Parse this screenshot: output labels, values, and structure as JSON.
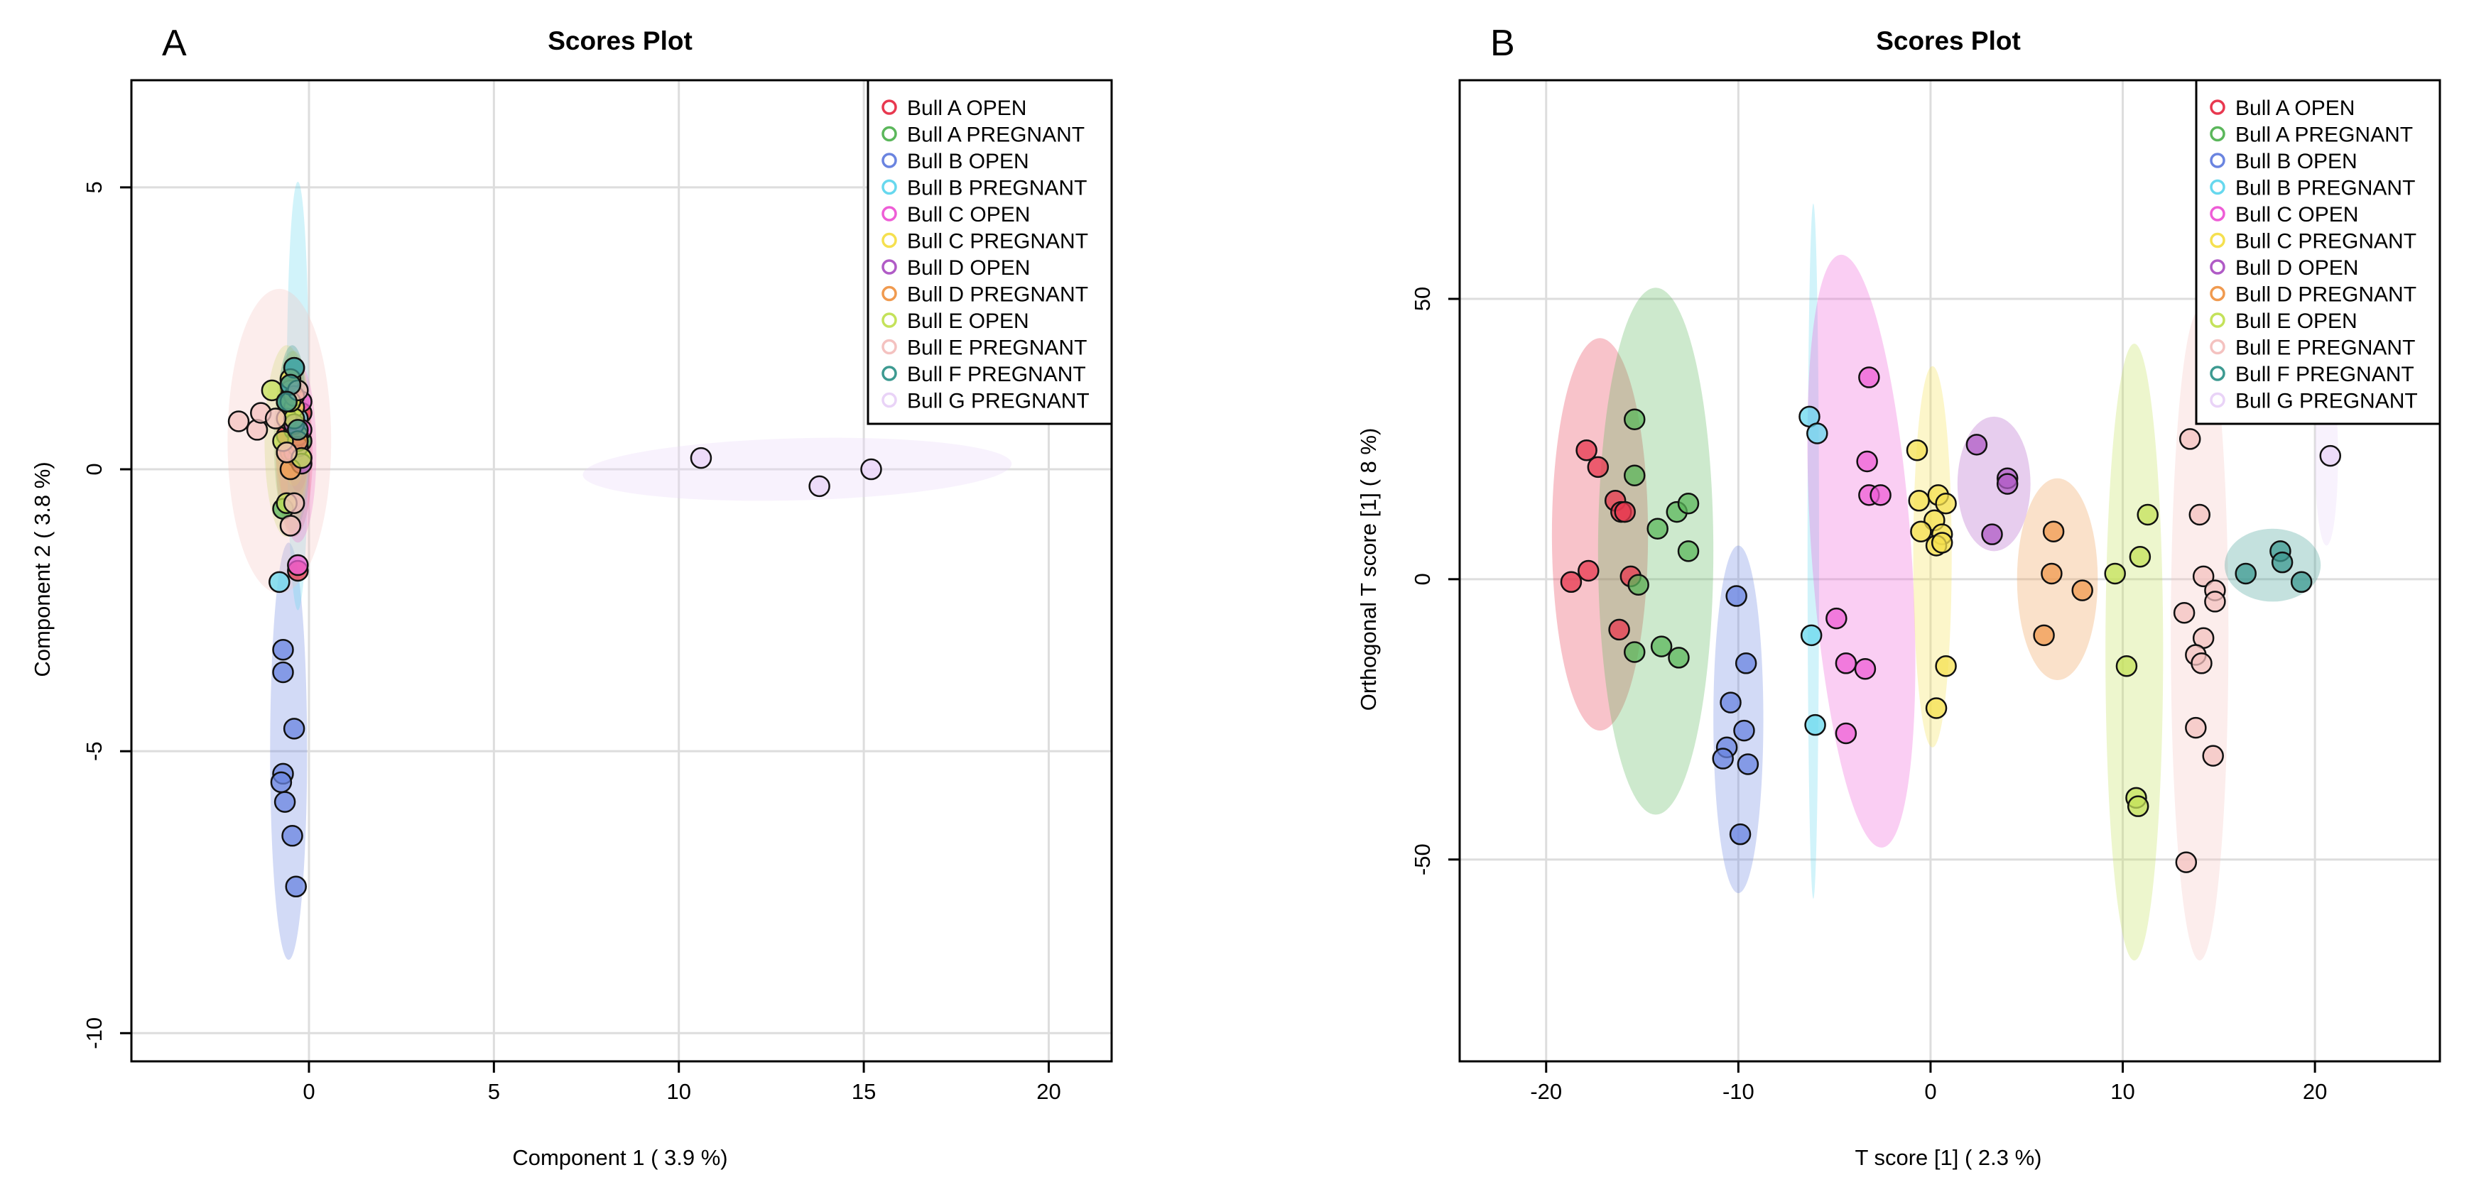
{
  "chart_data": [
    {
      "panel_label": "A",
      "type": "scatter",
      "title": "Scores Plot",
      "xlabel": "Component 1 ( 3.9 %)",
      "ylabel": "Component 2 ( 3.8 %)",
      "xlim": [
        -4.8,
        21.7
      ],
      "ylim": [
        -10.5,
        6.9
      ],
      "xticks": [
        0,
        5,
        10,
        15,
        20
      ],
      "xtick_labels": [
        "0",
        "5",
        "10",
        "15",
        "20"
      ],
      "yticks": [
        -10,
        -5,
        0,
        5
      ],
      "ytick_labels": [
        "-10",
        "-5",
        "0",
        "5"
      ],
      "grid": true,
      "legend_position": "top-right",
      "series": [
        {
          "name": "Bull A OPEN",
          "color": "#E8384F",
          "points": [
            [
              -0.4,
              0.8
            ],
            [
              -0.3,
              0.4
            ],
            [
              -0.6,
              0.6
            ],
            [
              -0.3,
              -1.8
            ],
            [
              -0.2,
              1.0
            ],
            [
              -0.5,
              0.3
            ]
          ],
          "ellipse": {
            "cx": -0.4,
            "cy": 0.3,
            "rx": 0.5,
            "ry": 1.5,
            "angle": 0
          }
        },
        {
          "name": "Bull A PREGNANT",
          "color": "#5BB75B",
          "points": [
            [
              -0.6,
              1.2
            ],
            [
              -0.4,
              0.7
            ],
            [
              -0.3,
              0.2
            ],
            [
              -0.7,
              -0.7
            ],
            [
              -0.5,
              1.5
            ],
            [
              -0.2,
              0.5
            ]
          ],
          "ellipse": {
            "cx": -0.45,
            "cy": 0.5,
            "rx": 0.5,
            "ry": 1.6,
            "angle": 0
          }
        },
        {
          "name": "Bull B OPEN",
          "color": "#6A84E0",
          "points": [
            [
              -0.7,
              -3.2
            ],
            [
              -0.7,
              -3.6
            ],
            [
              -0.4,
              -4.6
            ],
            [
              -0.7,
              -5.4
            ],
            [
              -0.75,
              -5.55
            ],
            [
              -0.65,
              -5.9
            ],
            [
              -0.45,
              -6.5
            ],
            [
              -0.35,
              -7.4
            ]
          ],
          "ellipse": {
            "cx": -0.55,
            "cy": -5.0,
            "rx": 0.5,
            "ry": 3.7,
            "angle": 0
          }
        },
        {
          "name": "Bull B PREGNANT",
          "color": "#67D8EE",
          "points": [
            [
              -0.8,
              -2.0
            ],
            [
              -0.4,
              1.8
            ],
            [
              -0.5,
              1.4
            ],
            [
              -0.3,
              0.9
            ]
          ],
          "ellipse": {
            "cx": -0.3,
            "cy": 1.3,
            "rx": 0.3,
            "ry": 3.8,
            "angle": 0
          }
        },
        {
          "name": "Bull C OPEN",
          "color": "#EE5DD6",
          "points": [
            [
              -0.2,
              0.7
            ],
            [
              -0.4,
              0.3
            ],
            [
              -0.3,
              -1.7
            ],
            [
              -0.2,
              1.2
            ]
          ],
          "ellipse": {
            "cx": -0.3,
            "cy": 0.3,
            "rx": 0.5,
            "ry": 1.6,
            "angle": 0
          }
        },
        {
          "name": "Bull C PREGNANT",
          "color": "#F5E04F",
          "points": [
            [
              -0.5,
              1.6
            ],
            [
              -0.4,
              1.1
            ],
            [
              -0.3,
              0.6
            ],
            [
              -0.6,
              0.9
            ],
            [
              -0.2,
              0.2
            ]
          ],
          "ellipse": {
            "cx": -0.4,
            "cy": 0.9,
            "rx": 0.4,
            "ry": 1.2,
            "angle": 0
          }
        },
        {
          "name": "Bull D OPEN",
          "color": "#B05BC6",
          "points": [
            [
              -0.3,
              0.4
            ],
            [
              -0.4,
              0.8
            ],
            [
              -0.2,
              0.1
            ]
          ],
          "ellipse": {
            "cx": -0.3,
            "cy": 0.4,
            "rx": 0.3,
            "ry": 0.8,
            "angle": 0
          }
        },
        {
          "name": "Bull D PREGNANT",
          "color": "#F09A4F",
          "points": [
            [
              -0.5,
              0.0
            ],
            [
              -0.3,
              0.5
            ],
            [
              -0.6,
              0.3
            ],
            [
              -0.4,
              1.3
            ]
          ],
          "ellipse": {
            "cx": -0.45,
            "cy": 0.5,
            "rx": 0.45,
            "ry": 1.2,
            "angle": 0
          }
        },
        {
          "name": "Bull E OPEN",
          "color": "#C4E25A",
          "points": [
            [
              -1.0,
              1.4
            ],
            [
              -0.6,
              -0.6
            ],
            [
              -0.4,
              0.9
            ],
            [
              -0.7,
              0.5
            ],
            [
              -0.2,
              0.2
            ],
            [
              -0.5,
              1.2
            ]
          ],
          "ellipse": {
            "cx": -0.6,
            "cy": 0.5,
            "rx": 0.6,
            "ry": 1.7,
            "angle": 0
          }
        },
        {
          "name": "Bull E PREGNANT",
          "color": "#F4C2C0",
          "points": [
            [
              -1.9,
              0.85
            ],
            [
              -1.4,
              0.7
            ],
            [
              -1.3,
              1.0
            ],
            [
              -0.9,
              0.9
            ],
            [
              -0.5,
              -1.0
            ],
            [
              -0.4,
              -0.6
            ],
            [
              -0.6,
              0.3
            ],
            [
              -0.3,
              1.4
            ]
          ],
          "ellipse": {
            "cx": -0.8,
            "cy": 0.5,
            "rx": 1.4,
            "ry": 2.7,
            "angle": 0
          }
        },
        {
          "name": "Bull F PREGNANT",
          "color": "#3D9A91",
          "points": [
            [
              -0.4,
              1.8
            ],
            [
              -0.5,
              1.5
            ],
            [
              -0.3,
              0.7
            ],
            [
              -0.6,
              1.2
            ]
          ],
          "ellipse": {
            "cx": -0.45,
            "cy": 1.3,
            "rx": 0.35,
            "ry": 0.9,
            "angle": 0
          }
        },
        {
          "name": "Bull G PREGNANT",
          "color": "#E9D3F7",
          "points": [
            [
              10.6,
              0.2
            ],
            [
              13.8,
              -0.3
            ],
            [
              15.2,
              0.0
            ]
          ],
          "ellipse": {
            "cx": 13.2,
            "cy": 0.0,
            "rx": 5.8,
            "ry": 0.55,
            "angle": -1.5
          }
        }
      ]
    },
    {
      "panel_label": "B",
      "type": "scatter",
      "title": "Scores Plot",
      "xlabel": "T score [1] ( 2.3 %)",
      "ylabel": "Orthogonal T score [1] ( 8 %)",
      "xlim": [
        -24.5,
        26.5
      ],
      "ylim": [
        -86,
        89
      ],
      "xticks": [
        -20,
        -10,
        0,
        10,
        20
      ],
      "xtick_labels": [
        "-20",
        "-10",
        "0",
        "10",
        "20"
      ],
      "yticks": [
        -50,
        0,
        50
      ],
      "ytick_labels": [
        "-50",
        "0",
        "50"
      ],
      "grid": true,
      "legend_position": "top-right",
      "series": [
        {
          "name": "Bull A OPEN",
          "color": "#E8384F",
          "points": [
            [
              -17.9,
              23
            ],
            [
              -17.3,
              20
            ],
            [
              -16.4,
              14
            ],
            [
              -16.1,
              12
            ],
            [
              -15.9,
              12
            ],
            [
              -17.8,
              1.5
            ],
            [
              -15.6,
              0.5
            ],
            [
              -18.7,
              -0.5
            ],
            [
              -16.2,
              -9
            ]
          ],
          "ellipse": {
            "cx": -17.2,
            "cy": 8,
            "rx": 2.5,
            "ry": 35,
            "angle": 0
          }
        },
        {
          "name": "Bull A PREGNANT",
          "color": "#5BB75B",
          "points": [
            [
              -15.4,
              28.5
            ],
            [
              -15.4,
              18.5
            ],
            [
              -13.2,
              12
            ],
            [
              -12.6,
              13.5
            ],
            [
              -14.2,
              9
            ],
            [
              -12.6,
              5
            ],
            [
              -15.2,
              -1
            ],
            [
              -14,
              -12
            ],
            [
              -15.4,
              -13
            ],
            [
              -13.1,
              -14
            ]
          ],
          "ellipse": {
            "cx": -14.3,
            "cy": 5,
            "rx": 3.0,
            "ry": 47,
            "angle": 0
          }
        },
        {
          "name": "Bull B OPEN",
          "color": "#6A84E0",
          "points": [
            [
              -10.1,
              -3
            ],
            [
              -9.6,
              -15
            ],
            [
              -10.4,
              -22
            ],
            [
              -9.7,
              -27
            ],
            [
              -10.6,
              -30
            ],
            [
              -10.8,
              -32
            ],
            [
              -9.5,
              -33
            ],
            [
              -9.9,
              -45.5
            ]
          ],
          "ellipse": {
            "cx": -10.0,
            "cy": -25,
            "rx": 1.3,
            "ry": 31,
            "angle": 0
          }
        },
        {
          "name": "Bull B PREGNANT",
          "color": "#67D8EE",
          "points": [
            [
              -6.3,
              29
            ],
            [
              -5.9,
              26
            ],
            [
              -6.2,
              -10
            ],
            [
              -6.0,
              -26
            ]
          ],
          "ellipse": {
            "cx": -6.1,
            "cy": 5,
            "rx": 0.3,
            "ry": 62,
            "angle": 0
          }
        },
        {
          "name": "Bull C OPEN",
          "color": "#EE5DD6",
          "points": [
            [
              -3.2,
              36
            ],
            [
              -3.3,
              21
            ],
            [
              -3.2,
              15
            ],
            [
              -2.6,
              15
            ],
            [
              -4.9,
              -7
            ],
            [
              -4.4,
              -15
            ],
            [
              -3.4,
              -16
            ],
            [
              -4.4,
              -27.5
            ]
          ],
          "ellipse": {
            "cx": -3.6,
            "cy": 5,
            "rx": 2.6,
            "ry": 53,
            "angle": -4
          }
        },
        {
          "name": "Bull C PREGNANT",
          "color": "#F5E04F",
          "points": [
            [
              -0.7,
              23
            ],
            [
              -0.6,
              14
            ],
            [
              0.4,
              15
            ],
            [
              0.2,
              10.5
            ],
            [
              0.8,
              13.5
            ],
            [
              -0.5,
              8.5
            ],
            [
              0.6,
              8
            ],
            [
              0.3,
              6
            ],
            [
              0.6,
              6.5
            ],
            [
              0.8,
              -15.5
            ],
            [
              0.3,
              -23
            ]
          ],
          "ellipse": {
            "cx": 0.1,
            "cy": 4,
            "rx": 1.0,
            "ry": 34,
            "angle": 0
          }
        },
        {
          "name": "Bull D OPEN",
          "color": "#B05BC6",
          "points": [
            [
              2.4,
              24
            ],
            [
              4.0,
              18
            ],
            [
              4.0,
              17
            ],
            [
              3.2,
              8
            ]
          ],
          "ellipse": {
            "cx": 3.3,
            "cy": 17,
            "rx": 1.9,
            "ry": 12,
            "angle": 0
          }
        },
        {
          "name": "Bull D PREGNANT",
          "color": "#F09A4F",
          "points": [
            [
              6.4,
              8.5
            ],
            [
              6.3,
              1
            ],
            [
              7.9,
              -2
            ],
            [
              5.9,
              -10
            ]
          ],
          "ellipse": {
            "cx": 6.6,
            "cy": 0,
            "rx": 2.1,
            "ry": 18,
            "angle": 0
          }
        },
        {
          "name": "Bull E OPEN",
          "color": "#C4E25A",
          "points": [
            [
              11.3,
              11.5
            ],
            [
              10.9,
              4
            ],
            [
              9.6,
              1
            ],
            [
              10.2,
              -15.5
            ],
            [
              10.7,
              -39
            ],
            [
              10.8,
              -40.5
            ]
          ],
          "ellipse": {
            "cx": 10.6,
            "cy": -13,
            "rx": 1.5,
            "ry": 55,
            "angle": 0
          }
        },
        {
          "name": "Bull E PREGNANT",
          "color": "#F4C2C0",
          "points": [
            [
              13.5,
              25
            ],
            [
              14.0,
              11.5
            ],
            [
              14.2,
              0.5
            ],
            [
              14.8,
              -2
            ],
            [
              14.8,
              -4
            ],
            [
              13.2,
              -6
            ],
            [
              14.2,
              -10.5
            ],
            [
              13.8,
              -13.5
            ],
            [
              14.1,
              -15
            ],
            [
              13.8,
              -26.5
            ],
            [
              14.7,
              -31.5
            ],
            [
              13.3,
              -50.5
            ]
          ],
          "ellipse": {
            "cx": 14.0,
            "cy": -10,
            "rx": 1.5,
            "ry": 58,
            "angle": 0
          }
        },
        {
          "name": "Bull F PREGNANT",
          "color": "#3D9A91",
          "points": [
            [
              16.4,
              1
            ],
            [
              18.2,
              5
            ],
            [
              18.3,
              3
            ],
            [
              19.3,
              -0.5
            ]
          ],
          "ellipse": {
            "cx": 17.8,
            "cy": 2.5,
            "rx": 2.5,
            "ry": 6.5,
            "angle": 0
          }
        },
        {
          "name": "Bull G PREGNANT",
          "color": "#E9D3F7",
          "points": [
            [
              20.8,
              22
            ]
          ],
          "ellipse": {
            "cx": 20.6,
            "cy": 22,
            "rx": 0.6,
            "ry": 16,
            "angle": 0
          }
        }
      ]
    }
  ]
}
